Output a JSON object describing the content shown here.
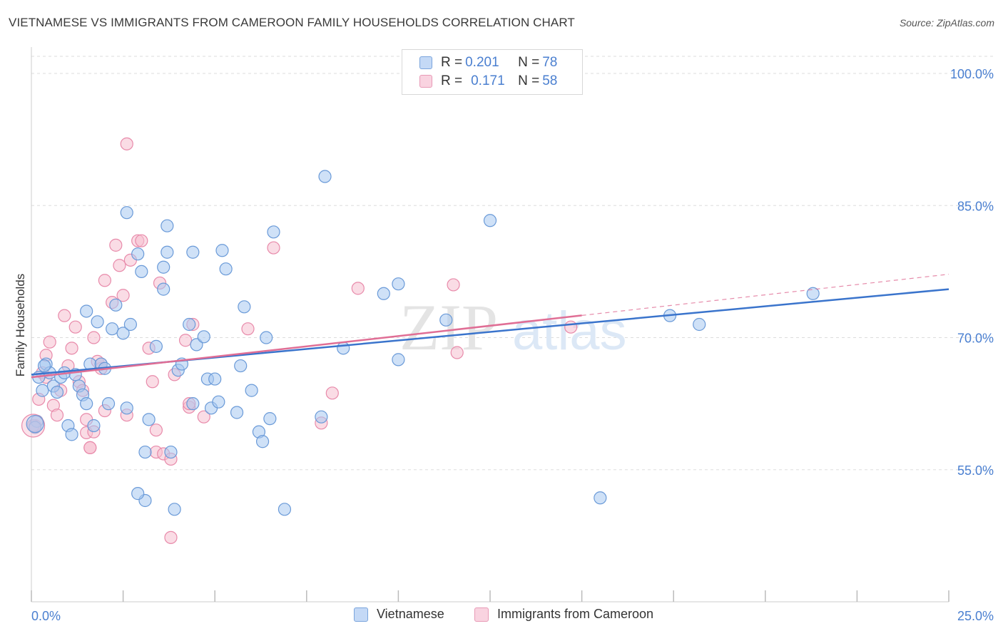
{
  "title": "VIETNAMESE VS IMMIGRANTS FROM CAMEROON FAMILY HOUSEHOLDS CORRELATION CHART",
  "source": "Source: ZipAtlas.com",
  "watermark": {
    "zip": "ZIP",
    "atlas": "atlas"
  },
  "colors": {
    "blue_fill": "#a8c8f0",
    "blue_stroke": "#6a9ad8",
    "blue_line": "#3a74cc",
    "pink_fill": "#f6bfd0",
    "pink_stroke": "#e88aaa",
    "pink_line": "#e06e95",
    "tick_label": "#4a7fd0",
    "grid": "#dddddd"
  },
  "legend_top": {
    "rows": [
      {
        "r_label": "R = ",
        "r_value": "0.201",
        "n_label": "N = ",
        "n_value": "78"
      },
      {
        "r_label": "R = ",
        "r_value": "0.171",
        "n_label": "N = ",
        "n_value": "58"
      }
    ]
  },
  "chart_data": {
    "type": "scatter",
    "title": "VIETNAMESE VS IMMIGRANTS FROM CAMEROON FAMILY HOUSEHOLDS CORRELATION CHART",
    "xlabel": "",
    "ylabel": "Family Households",
    "xlim": [
      0,
      25
    ],
    "ylim": [
      40,
      103
    ],
    "x_tick_labels": [
      "0.0%",
      "25.0%"
    ],
    "y_ticks": [
      55,
      70,
      85,
      100
    ],
    "y_tick_labels": [
      "55.0%",
      "70.0%",
      "85.0%",
      "100.0%"
    ],
    "series": [
      {
        "name": "Vietnamese",
        "r": 0.201,
        "n": 78,
        "trend": {
          "x": [
            0,
            25
          ],
          "y": [
            65.8,
            75.5
          ],
          "dashed_from": null
        },
        "points": [
          [
            0.2,
            65.5
          ],
          [
            0.3,
            64
          ],
          [
            0.4,
            67
          ],
          [
            0.5,
            66
          ],
          [
            0.6,
            64.5
          ],
          [
            0.7,
            63.8
          ],
          [
            0.8,
            65.5
          ],
          [
            0.9,
            66
          ],
          [
            1.0,
            60
          ],
          [
            1.1,
            59
          ],
          [
            1.2,
            65.8
          ],
          [
            1.3,
            64.5
          ],
          [
            1.4,
            63.5
          ],
          [
            1.5,
            62.5
          ],
          [
            1.5,
            73
          ],
          [
            1.6,
            67
          ],
          [
            1.7,
            60
          ],
          [
            1.8,
            71.8
          ],
          [
            1.9,
            67
          ],
          [
            2.0,
            66.5
          ],
          [
            2.1,
            62.5
          ],
          [
            2.2,
            71
          ],
          [
            2.3,
            73.7
          ],
          [
            2.5,
            70.5
          ],
          [
            2.6,
            84.2
          ],
          [
            2.6,
            62
          ],
          [
            2.7,
            71.5
          ],
          [
            2.9,
            79.5
          ],
          [
            3.0,
            77.5
          ],
          [
            3.1,
            57
          ],
          [
            3.1,
            51.5
          ],
          [
            3.2,
            60.7
          ],
          [
            2.9,
            52.3
          ],
          [
            3.4,
            69
          ],
          [
            3.6,
            78
          ],
          [
            3.6,
            75.5
          ],
          [
            3.7,
            82.7
          ],
          [
            3.7,
            79.7
          ],
          [
            3.8,
            57
          ],
          [
            3.9,
            50.5
          ],
          [
            4.0,
            66.3
          ],
          [
            4.1,
            67
          ],
          [
            4.3,
            71.5
          ],
          [
            4.4,
            79.7
          ],
          [
            4.4,
            62.5
          ],
          [
            4.5,
            69.2
          ],
          [
            4.7,
            70.1
          ],
          [
            4.8,
            65.3
          ],
          [
            4.9,
            62
          ],
          [
            5.0,
            65.3
          ],
          [
            5.1,
            62.7
          ],
          [
            5.2,
            79.9
          ],
          [
            5.3,
            77.8
          ],
          [
            5.6,
            61.5
          ],
          [
            5.7,
            66.8
          ],
          [
            5.8,
            73.5
          ],
          [
            6.0,
            64
          ],
          [
            6.2,
            59.3
          ],
          [
            6.3,
            58.2
          ],
          [
            6.4,
            70
          ],
          [
            6.5,
            60.8
          ],
          [
            6.6,
            82
          ],
          [
            6.9,
            50.5
          ],
          [
            7.9,
            61
          ],
          [
            8.0,
            88.3
          ],
          [
            8.5,
            68.8
          ],
          [
            9.6,
            75
          ],
          [
            10.0,
            76.1
          ],
          [
            10.0,
            67.5
          ],
          [
            11.3,
            72
          ],
          [
            12.5,
            83.3
          ],
          [
            15.5,
            51.8
          ],
          [
            17.4,
            72.5
          ],
          [
            18.2,
            71.5
          ],
          [
            21.3,
            75
          ],
          [
            0.15,
            60.5
          ],
          [
            0.1,
            59.8
          ],
          [
            0.35,
            66.8
          ]
        ]
      },
      {
        "name": "Immigrants from Cameroon",
        "r": 0.171,
        "n": 58,
        "trend": {
          "x": [
            0,
            25
          ],
          "y": [
            65.5,
            77.2
          ],
          "dashed_from": 15.0
        },
        "points": [
          [
            0.1,
            60
          ],
          [
            0.2,
            63
          ],
          [
            0.3,
            66
          ],
          [
            0.4,
            65.5
          ],
          [
            0.5,
            69.5
          ],
          [
            0.6,
            62.3
          ],
          [
            0.7,
            61.2
          ],
          [
            0.8,
            64
          ],
          [
            0.9,
            72.5
          ],
          [
            1.0,
            66.8
          ],
          [
            1.1,
            68.8
          ],
          [
            1.2,
            71.2
          ],
          [
            1.3,
            65
          ],
          [
            1.4,
            64
          ],
          [
            1.5,
            59.2
          ],
          [
            1.5,
            60.7
          ],
          [
            1.6,
            57.5
          ],
          [
            1.6,
            57.5
          ],
          [
            1.7,
            59.3
          ],
          [
            1.7,
            70
          ],
          [
            1.8,
            67.3
          ],
          [
            1.9,
            66.5
          ],
          [
            1.9,
            67
          ],
          [
            2.0,
            61.7
          ],
          [
            2.0,
            76.5
          ],
          [
            2.2,
            74
          ],
          [
            2.3,
            80.5
          ],
          [
            2.4,
            78.2
          ],
          [
            2.5,
            74.8
          ],
          [
            2.6,
            61.2
          ],
          [
            2.6,
            92
          ],
          [
            2.7,
            78.8
          ],
          [
            2.9,
            81
          ],
          [
            3.0,
            81
          ],
          [
            3.2,
            68.8
          ],
          [
            3.3,
            65
          ],
          [
            3.4,
            59.5
          ],
          [
            3.4,
            57
          ],
          [
            3.5,
            76.2
          ],
          [
            3.6,
            56.8
          ],
          [
            3.8,
            56.2
          ],
          [
            3.8,
            47.3
          ],
          [
            3.9,
            65.8
          ],
          [
            4.2,
            69.7
          ],
          [
            4.3,
            62.1
          ],
          [
            4.3,
            62.5
          ],
          [
            4.4,
            71.5
          ],
          [
            4.7,
            61
          ],
          [
            5.9,
            71
          ],
          [
            6.6,
            80.2
          ],
          [
            7.9,
            60.3
          ],
          [
            8.2,
            63.7
          ],
          [
            8.9,
            75.6
          ],
          [
            11.5,
            76
          ],
          [
            11.6,
            68.3
          ],
          [
            14.7,
            71.2
          ],
          [
            0.05,
            60
          ],
          [
            0.4,
            68
          ]
        ]
      }
    ]
  },
  "bottom_legend": {
    "items": [
      "Vietnamese",
      "Immigrants from Cameroon"
    ]
  }
}
